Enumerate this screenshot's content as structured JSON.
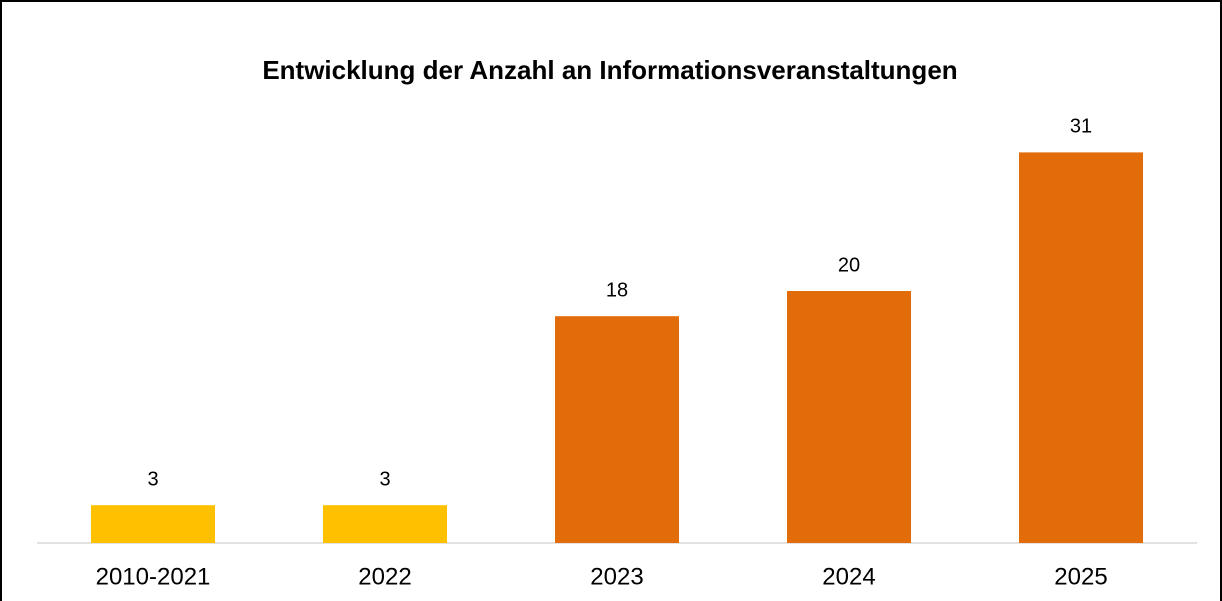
{
  "chart_data": {
    "type": "bar",
    "title": "Entwicklung der Anzahl an Informationsveranstaltungen",
    "categories": [
      "2010-2021",
      "2022",
      "2023",
      "2024",
      "2025"
    ],
    "values": [
      3,
      3,
      18,
      20,
      31
    ],
    "colors": [
      "#ffc000",
      "#ffc000",
      "#e36c0a",
      "#e36c0a",
      "#e36c0a"
    ],
    "ylim": [
      0,
      35
    ]
  }
}
